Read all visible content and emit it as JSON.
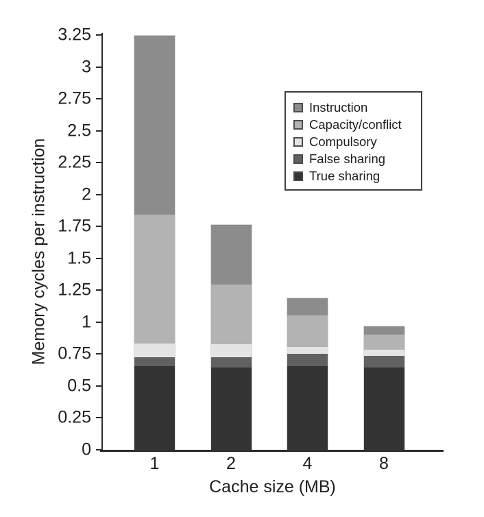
{
  "chart_data": {
    "type": "bar",
    "stacked": true,
    "title": "",
    "xlabel": "Cache size (MB)",
    "ylabel": "Memory cycles per instruction",
    "categories": [
      "1",
      "2",
      "4",
      "8"
    ],
    "series": [
      {
        "name": "Instruction",
        "color": "#8c8c8c",
        "values": [
          1.4,
          0.47,
          0.13,
          0.06
        ]
      },
      {
        "name": "Capacity/conflict",
        "color": "#b3b3b3",
        "values": [
          1.01,
          0.47,
          0.25,
          0.12
        ]
      },
      {
        "name": "Compulsory",
        "color": "#e4e4e4",
        "values": [
          0.11,
          0.1,
          0.05,
          0.05
        ]
      },
      {
        "name": "False sharing",
        "color": "#616161",
        "values": [
          0.07,
          0.08,
          0.1,
          0.09
        ]
      },
      {
        "name": "True sharing",
        "color": "#333333",
        "values": [
          0.66,
          0.65,
          0.66,
          0.65
        ]
      }
    ],
    "totals": [
      3.25,
      1.77,
      1.19,
      0.97
    ],
    "ylim": [
      0,
      3.25
    ],
    "ytick_step": 0.25,
    "yticks": [
      "0",
      "0.25",
      "0.5",
      "0.75",
      "1",
      "1.25",
      "1.5",
      "1.75",
      "2",
      "2.25",
      "2.5",
      "2.75",
      "3",
      "3.25"
    ],
    "legend_position": "upper right",
    "grid": false,
    "colors": {
      "axis": "#2b2b2b",
      "text": "#1f1f1f",
      "legend_border": "#3e3e3e"
    }
  }
}
